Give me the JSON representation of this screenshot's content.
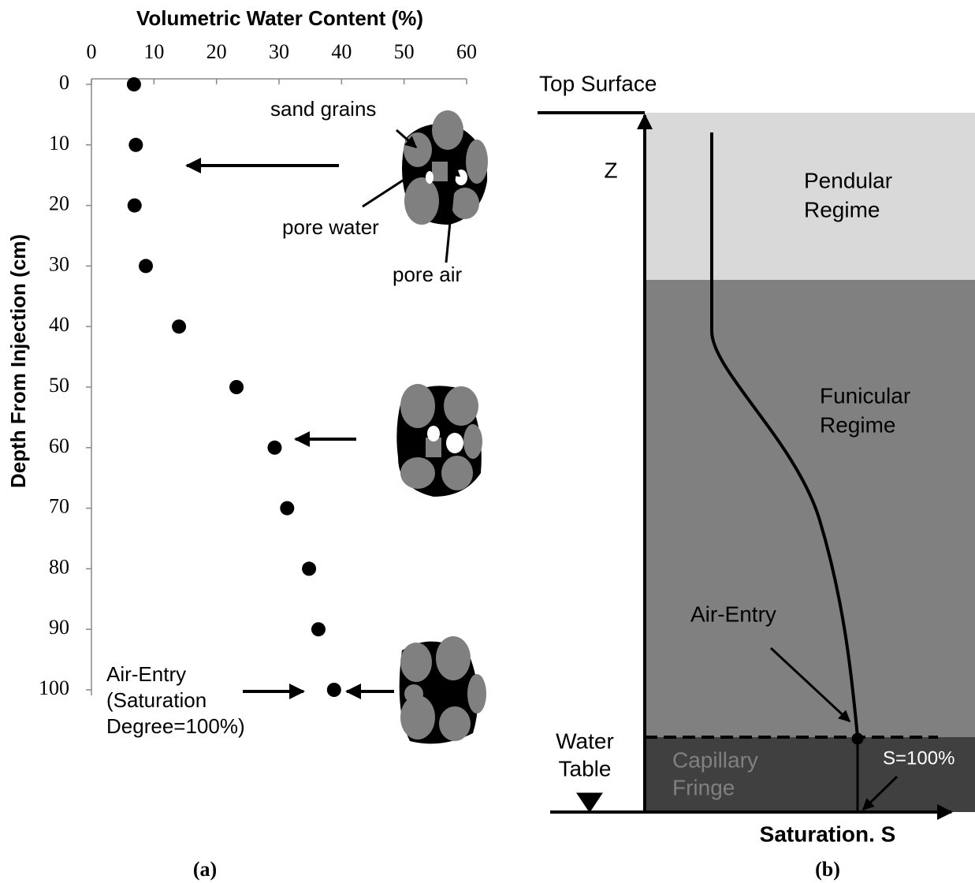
{
  "chart_data": {
    "type": "scatter",
    "x_label": "Volumetric Water Content (%)",
    "y_label": "Depth From Injection (cm)",
    "x": [
      6.8,
      7.1,
      6.9,
      8.7,
      14.0,
      23.2,
      29.3,
      31.3,
      34.8,
      36.3,
      38.8
    ],
    "values": [
      0,
      10,
      20,
      30,
      40,
      50,
      60,
      70,
      80,
      90,
      100
    ],
    "color": "#000000",
    "xlim": [
      0,
      60
    ],
    "xticks": [
      0,
      10,
      20,
      30,
      40,
      50,
      60
    ],
    "ylim": [
      0,
      100
    ],
    "yticks": [
      0,
      10,
      20,
      30,
      40,
      50,
      60,
      70,
      80,
      90,
      100
    ],
    "y_inverted": true,
    "annotations": {
      "sand_grains": "sand grains",
      "pore_water": "pore water",
      "pore_air": "pore air",
      "air_entry": [
        "Air-Entry",
        "(Saturation",
        "Degree=100%)"
      ]
    },
    "panel_label": "(a)"
  },
  "diagram": {
    "top_surface": "Top Surface",
    "z_label": "Z",
    "pendular": [
      "Pendular",
      "Regime"
    ],
    "funicular": [
      "Funicular",
      "Regime"
    ],
    "air_entry": "Air-Entry",
    "water_table": [
      "Water",
      "Table"
    ],
    "capillary": [
      "Capillary",
      "Fringe"
    ],
    "s100": "S=100%",
    "x_label": "Saturation. S",
    "panel_label": "(b)"
  }
}
